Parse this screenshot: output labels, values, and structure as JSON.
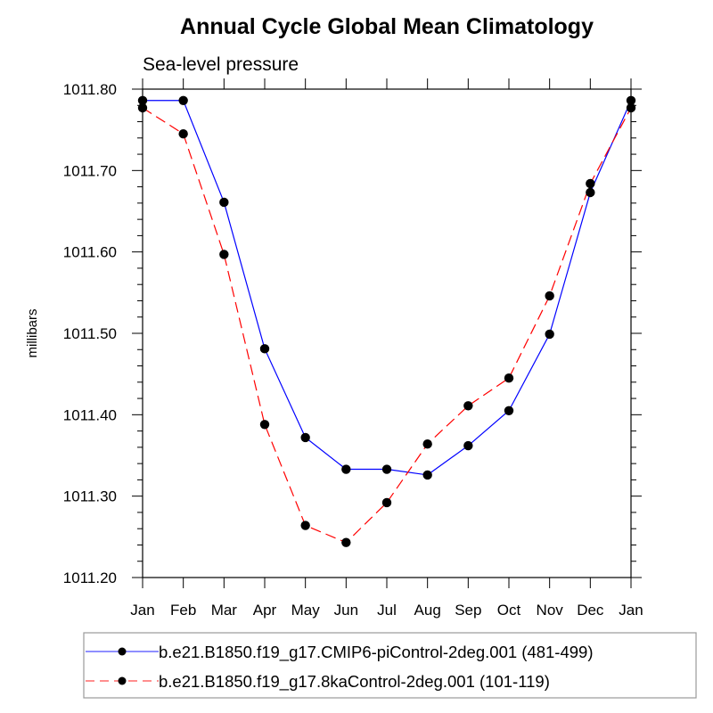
{
  "chart_data": {
    "type": "line",
    "title": "Annual Cycle Global Mean Climatology",
    "subtitle": "Sea-level pressure",
    "xlabel": "",
    "ylabel": "millibars",
    "categories": [
      "Jan",
      "Feb",
      "Mar",
      "Apr",
      "May",
      "Jun",
      "Jul",
      "Aug",
      "Sep",
      "Oct",
      "Nov",
      "Dec",
      "Jan"
    ],
    "ylim": [
      1011.2,
      1011.8
    ],
    "yticks": [
      1011.2,
      1011.3,
      1011.4,
      1011.5,
      1011.6,
      1011.7,
      1011.8
    ],
    "ytick_labels": [
      "1011.20",
      "1011.30",
      "1011.40",
      "1011.50",
      "1011.60",
      "1011.70",
      "1011.80"
    ],
    "y_minor_step": 0.02,
    "grid": false,
    "legend_position": "bottom",
    "series": [
      {
        "name": "b.e21.B1850.f19_g17.CMIP6-piControl-2deg.001 (481-499)",
        "color": "#0000ff",
        "line_style": "solid",
        "marker": "filled-circle",
        "values": [
          1011.786,
          1011.786,
          1011.661,
          1011.481,
          1011.372,
          1011.333,
          1011.333,
          1011.326,
          1011.362,
          1011.405,
          1011.499,
          1011.673,
          1011.786
        ]
      },
      {
        "name": "b.e21.B1850.f19_g17.8kaControl-2deg.001 (101-119)",
        "color": "#ff0000",
        "line_style": "dashed",
        "marker": "filled-circle",
        "values": [
          1011.777,
          1011.745,
          1011.597,
          1011.388,
          1011.264,
          1011.243,
          1011.292,
          1011.364,
          1011.411,
          1011.445,
          1011.546,
          1011.684,
          1011.777
        ]
      }
    ]
  }
}
